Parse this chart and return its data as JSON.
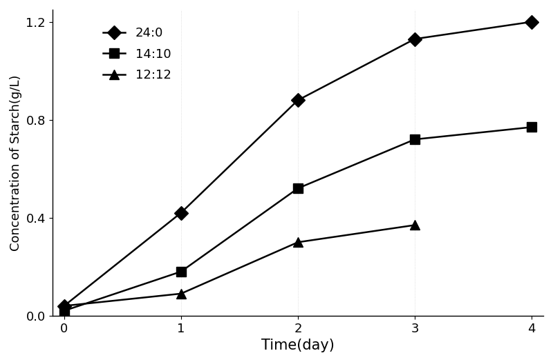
{
  "x": [
    0,
    1,
    2,
    3,
    4
  ],
  "series": [
    {
      "label": "24:0",
      "y": [
        0.04,
        0.42,
        0.88,
        1.13,
        1.2
      ],
      "marker": "D",
      "markersize": 10,
      "linewidth": 1.8
    },
    {
      "label": "14:10",
      "y": [
        0.02,
        0.18,
        0.52,
        0.72,
        0.77
      ],
      "marker": "s",
      "markersize": 10,
      "linewidth": 1.8
    },
    {
      "label": "12:12",
      "y": [
        0.04,
        0.09,
        0.3,
        0.37,
        null
      ],
      "marker": "^",
      "markersize": 10,
      "linewidth": 1.8
    }
  ],
  "xlabel": "Time(day)",
  "ylabel": "Concentration of Starch(g/L)",
  "xlim": [
    -0.1,
    4.1
  ],
  "ylim": [
    0,
    1.25
  ],
  "yticks": [
    0,
    0.4,
    0.8,
    1.2
  ],
  "xticks": [
    0,
    1,
    2,
    3,
    4
  ],
  "legend_loc": "upper left",
  "background_color": "#ffffff",
  "xlabel_fontsize": 15,
  "ylabel_fontsize": 13,
  "tick_fontsize": 13,
  "legend_fontsize": 13,
  "color": "#000000"
}
